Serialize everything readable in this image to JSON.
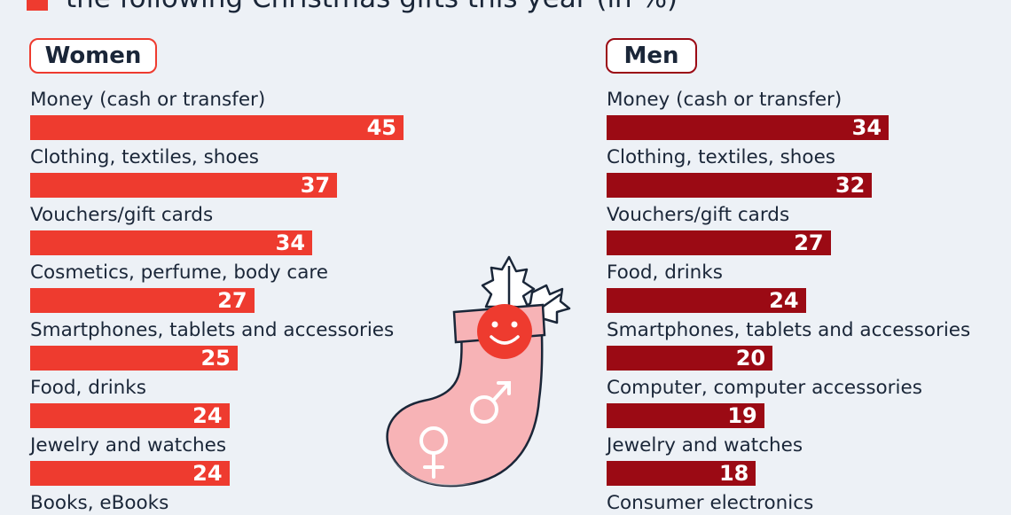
{
  "title_fragment": "the following Christmas gifts this year  (in %)",
  "colors": {
    "women": "#ee3b2f",
    "men": "#9b0a14",
    "title_square": "#ee3b2f",
    "sock_body": "#f7b3b6",
    "sock_stroke": "#ffffff"
  },
  "chart_data": [
    {
      "type": "bar",
      "orientation": "horizontal",
      "group_label": "Women",
      "categories": [
        "Money (cash or transfer)",
        "Clothing, textiles, shoes",
        "Vouchers/gift cards",
        "Cosmetics, perfume, body care",
        "Smartphones, tablets and accessories",
        "Food, drinks",
        "Jewelry and watches",
        "Books, eBooks"
      ],
      "values": [
        45,
        37,
        34,
        27,
        25,
        24,
        24,
        null
      ],
      "xlim": [
        0,
        45
      ]
    },
    {
      "type": "bar",
      "orientation": "horizontal",
      "group_label": "Men",
      "categories": [
        "Money (cash or transfer)",
        "Clothing, textiles, shoes",
        "Vouchers/gift cards",
        "Food, drinks",
        "Smartphones, tablets and accessories",
        "Computer, computer accessories",
        "Jewelry and watches",
        "Consumer electronics"
      ],
      "values": [
        34,
        32,
        27,
        24,
        20,
        19,
        18,
        null
      ],
      "xlim": [
        0,
        45
      ]
    }
  ],
  "illustration": {
    "icons": [
      "christmas-stocking-icon",
      "smiley-face-icon",
      "holly-leaves-icon",
      "female-symbol-icon",
      "male-symbol-icon"
    ]
  }
}
